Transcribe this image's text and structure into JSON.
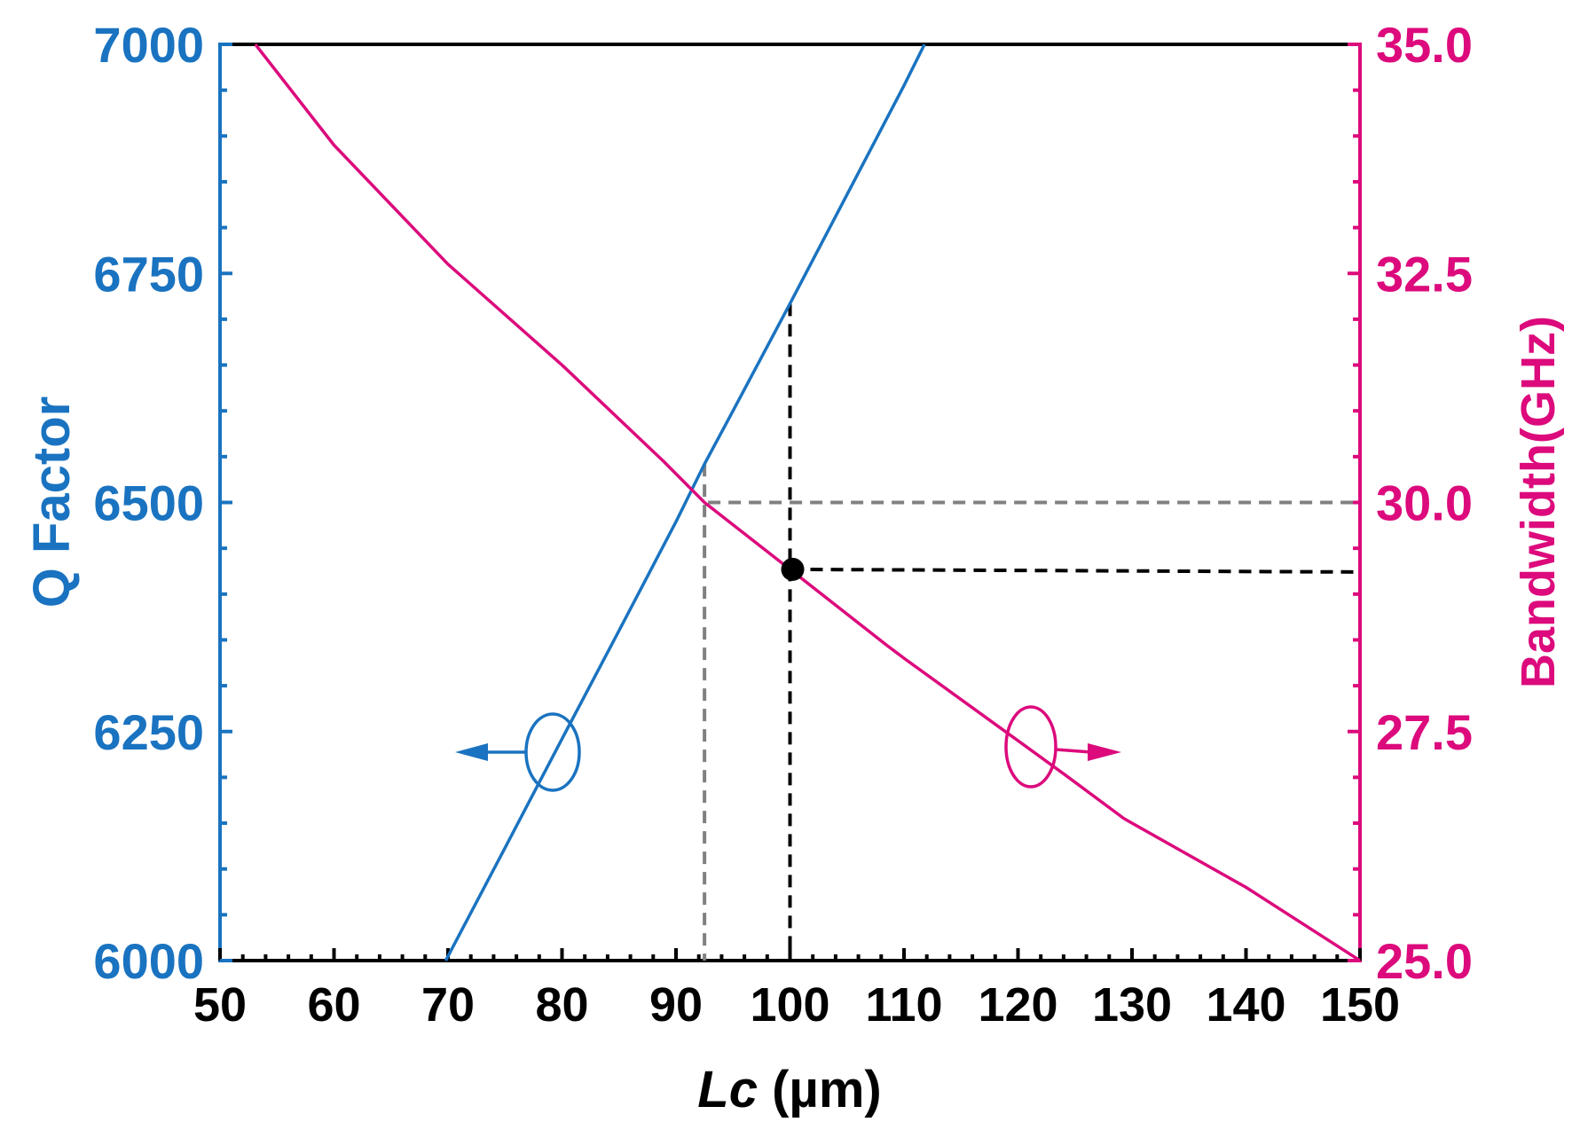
{
  "chart_data": {
    "type": "line",
    "title": "",
    "xlabel": "Lc (µm)",
    "xlabel_italic_part": "Lc",
    "xlabel_unit_part": " (µm)",
    "ylabel_left": "Q Factor",
    "ylabel_right": "Bandwidth(GHz)",
    "xlim": [
      50,
      150
    ],
    "ylim_left": [
      6000,
      7000
    ],
    "ylim_right": [
      25.0,
      35.0
    ],
    "x_ticks": [
      "50",
      "60",
      "70",
      "80",
      "90",
      "100",
      "110",
      "120",
      "130",
      "140",
      "150"
    ],
    "y_left_ticks": [
      "6000",
      "6250",
      "6500",
      "6750",
      "7000"
    ],
    "y_right_ticks": [
      "25.0",
      "27.5",
      "30.0",
      "32.5",
      "35.0"
    ],
    "grid": false,
    "legend": "none (ellipse + arrow annotations indicate axis association)",
    "series": [
      {
        "name": "Q Factor",
        "axis": "left",
        "color": "#1a73c0",
        "x": [
          69.8,
          75,
          80,
          85,
          90,
          92.5,
          95,
          100,
          105,
          110,
          111.8
        ],
        "values": [
          6000,
          6123,
          6242,
          6360,
          6479,
          6542,
          6600,
          6717,
          6836,
          6955,
          7000
        ]
      },
      {
        "name": "Bandwidth",
        "axis": "right",
        "color": "#dc0a7c",
        "x": [
          53.1,
          60,
          70,
          80,
          88.9,
          92.5,
          100,
          108.5,
          110,
          120,
          124.1,
          129.3,
          140,
          150
        ],
        "values": [
          35.0,
          33.9,
          32.6,
          31.5,
          30.45,
          30.0,
          29.27,
          28.44,
          28.3,
          27.4,
          27.03,
          26.55,
          25.8,
          25.0
        ]
      }
    ],
    "annotations": [
      {
        "type": "dashed-guide",
        "color": "#808080",
        "desc": "vertical at Lc≈92.5 from Q≈6542 down to x-axis; horizontal at BW=30.0 to right axis"
      },
      {
        "type": "dashed-guide",
        "color": "#000000",
        "desc": "vertical at Lc=100 from Q≈6717 down to x-axis; horizontal at BW≈29.27 to right axis"
      },
      {
        "type": "marker",
        "color": "#000000",
        "x": 100,
        "y_right": 29.27,
        "desc": "filled dot on bandwidth curve at Lc=100"
      },
      {
        "type": "ellipse-arrow",
        "color": "#1a73c0",
        "direction": "left",
        "desc": "marks Q Factor curve → left axis"
      },
      {
        "type": "ellipse-arrow",
        "color": "#dc0a7c",
        "direction": "right",
        "desc": "marks Bandwidth curve → right axis"
      }
    ]
  },
  "colors": {
    "q_factor": "#1a73c0",
    "bandwidth": "#dc0a7c",
    "guide_gray": "#808080",
    "guide_black": "#000000",
    "frame": "#000000"
  }
}
